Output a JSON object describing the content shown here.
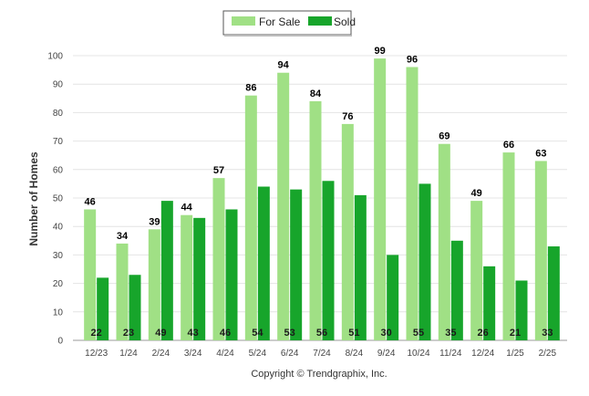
{
  "chart_data": {
    "type": "bar",
    "categories": [
      "12/23",
      "1/24",
      "2/24",
      "3/24",
      "4/24",
      "5/24",
      "6/24",
      "7/24",
      "8/24",
      "9/24",
      "10/24",
      "11/24",
      "12/24",
      "1/25",
      "2/25"
    ],
    "series": [
      {
        "name": "For Sale",
        "color": "#a0e085",
        "values": [
          46,
          34,
          39,
          44,
          57,
          86,
          94,
          84,
          76,
          99,
          96,
          69,
          49,
          66,
          63
        ]
      },
      {
        "name": "Sold",
        "color": "#17a52b",
        "values": [
          22,
          23,
          49,
          43,
          46,
          54,
          53,
          56,
          51,
          30,
          55,
          35,
          26,
          21,
          33
        ]
      }
    ],
    "ylabel": "Number of Homes",
    "ylim": [
      0,
      100
    ],
    "yticks": [
      0,
      10,
      20,
      30,
      40,
      50,
      60,
      70,
      80,
      90,
      100
    ],
    "grid": true,
    "legend_position": "top-center"
  },
  "footer": {
    "copyright": "Copyright © Trendgraphix, Inc."
  }
}
